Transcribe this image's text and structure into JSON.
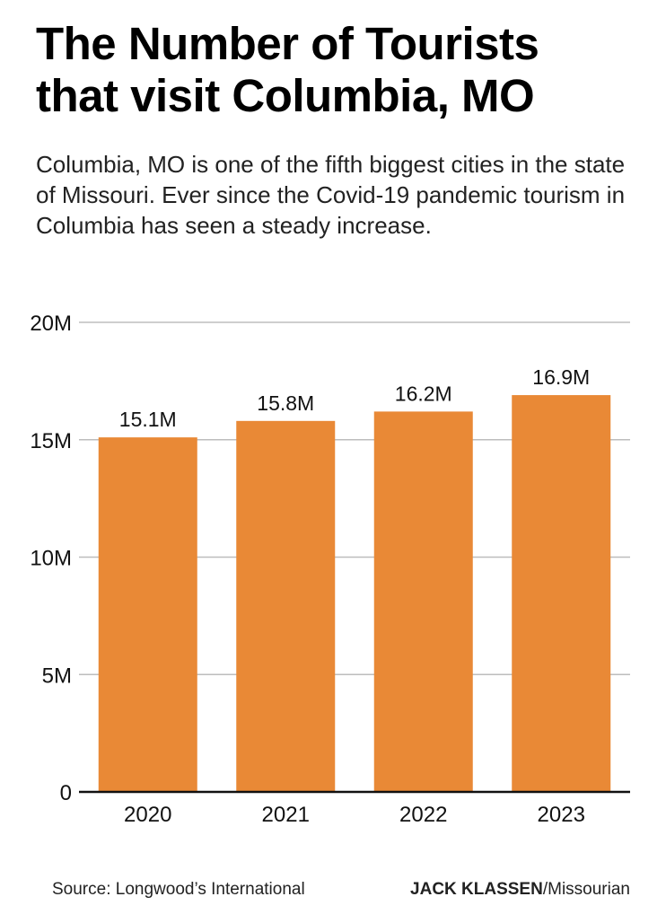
{
  "title_lines": [
    "The Number of Tourists",
    "that visit Columbia, MO"
  ],
  "subtitle": "Columbia, MO is one of the fifth biggest cities in the state of Missouri. Ever since the Covid-19 pandemic tourism in Columbia has seen a steady increase.",
  "footer": {
    "source": "Source: Longwood’s International",
    "credit_name": "JACK KLASSEN",
    "credit_org": "/Missourian"
  },
  "colors": {
    "bar": "#E98936",
    "grid": "#BDBDBD",
    "axis": "#111111"
  },
  "chart_data": {
    "type": "bar",
    "title": "The Number of Tourists that visit Columbia, MO",
    "categories": [
      "2020",
      "2021",
      "2022",
      "2023"
    ],
    "values": [
      15.1,
      15.8,
      16.2,
      16.9
    ],
    "value_unit": "M",
    "data_labels": [
      "15.1M",
      "15.8M",
      "16.2M",
      "16.9M"
    ],
    "y_ticks": [
      0,
      5,
      10,
      15,
      20
    ],
    "y_tick_labels": [
      "0",
      "5M",
      "10M",
      "15M",
      "20M"
    ],
    "ylim": [
      0,
      20
    ],
    "xlabel": "",
    "ylabel": "",
    "grid": true,
    "legend": "none"
  }
}
